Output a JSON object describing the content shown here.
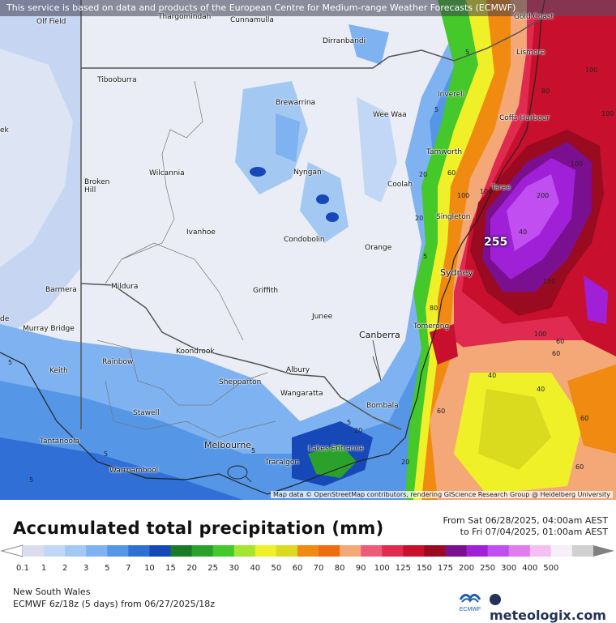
{
  "banner": "This service is based on data and products of the European Centre for Medium-range Weather Forecasts (ECMWF)",
  "credit": "Map data © OpenStreetMap contributors, rendering GIScience Research Group @ Heidelberg University",
  "max_value": "255",
  "cities": [
    {
      "name": "Olf Field",
      "id": "olf-field"
    },
    {
      "name": "Thargomindah",
      "id": "thargomindah"
    },
    {
      "name": "Cunnamulla",
      "id": "cunnamulla"
    },
    {
      "name": "Gold Coast",
      "id": "gold-coast"
    },
    {
      "name": "Dirranbandi",
      "id": "dirranbandi"
    },
    {
      "name": "Lismore",
      "id": "lismore"
    },
    {
      "name": "Tibooburra",
      "id": "tibooburra"
    },
    {
      "name": "Brewarrina",
      "id": "brewarrina"
    },
    {
      "name": "Inverell",
      "id": "inverell"
    },
    {
      "name": "Wee Waa",
      "id": "wee-waa"
    },
    {
      "name": "Coffs Harbour",
      "id": "coffs-harbour"
    },
    {
      "name": "Tamworth",
      "id": "tamworth"
    },
    {
      "name": "Wilcannia",
      "id": "wilcannia"
    },
    {
      "name": "Nyngan",
      "id": "nyngan"
    },
    {
      "name": "Broken Hill",
      "id": "broken-hill"
    },
    {
      "name": "Coolah",
      "id": "coolah"
    },
    {
      "name": "Taree",
      "id": "taree"
    },
    {
      "name": "Singleton",
      "id": "singleton"
    },
    {
      "name": "Ivanhoe",
      "id": "ivanhoe"
    },
    {
      "name": "Condobolin",
      "id": "condobolin"
    },
    {
      "name": "Orange",
      "id": "orange"
    },
    {
      "name": "Sydney",
      "id": "sydney"
    },
    {
      "name": "Barmera",
      "id": "barmera"
    },
    {
      "name": "Mildura",
      "id": "mildura"
    },
    {
      "name": "Griffith",
      "id": "griffith"
    },
    {
      "name": "Junee",
      "id": "junee"
    },
    {
      "name": "Murray Bridge",
      "id": "murray-bridge"
    },
    {
      "name": "Canberra",
      "id": "canberra"
    },
    {
      "name": "Tomerong",
      "id": "tomerong"
    },
    {
      "name": "Koondrook",
      "id": "koondrook"
    },
    {
      "name": "Keith",
      "id": "keith"
    },
    {
      "name": "Rainbow",
      "id": "rainbow"
    },
    {
      "name": "Albury",
      "id": "albury"
    },
    {
      "name": "Shepparton",
      "id": "shepparton"
    },
    {
      "name": "Wangaratta",
      "id": "wangaratta"
    },
    {
      "name": "Bombala",
      "id": "bombala"
    },
    {
      "name": "Stawell",
      "id": "stawell"
    },
    {
      "name": "Tantanoola",
      "id": "tantanoola"
    },
    {
      "name": "Melbourne",
      "id": "melbourne"
    },
    {
      "name": "Lakes Entrance",
      "id": "lakes-entrance"
    },
    {
      "name": "Warrnambool",
      "id": "warrnambool"
    },
    {
      "name": "Traralgon",
      "id": "traralgon"
    },
    {
      "name": "ek",
      "id": "ek"
    },
    {
      "name": "de",
      "id": "de"
    }
  ],
  "isolines": [
    "100",
    "80",
    "100",
    "100",
    "100",
    "200",
    "150",
    "100",
    "100",
    "60",
    "60",
    "40",
    "40",
    "60",
    "60",
    "80",
    "20",
    "20",
    "5",
    "5",
    "5",
    "5",
    "5",
    "5",
    "20",
    "40",
    "60",
    "60",
    "20",
    "5",
    "5"
  ],
  "legend": {
    "title": "Accumulated total precipitation (mm)",
    "from_line": "From Sat 06/28/2025, 04:00am AEST",
    "to_line": "to Fri 07/04/2025, 01:00am AEST",
    "levels": [
      "0.1",
      "1",
      "2",
      "3",
      "5",
      "7",
      "10",
      "15",
      "20",
      "25",
      "30",
      "40",
      "50",
      "60",
      "70",
      "80",
      "90",
      "100",
      "125",
      "150",
      "175",
      "200",
      "250",
      "300",
      "400",
      "500"
    ],
    "colors": [
      "#dcdcf0",
      "#c2d7f5",
      "#a3c8f2",
      "#7fb2f0",
      "#5596e6",
      "#2f6fd6",
      "#1648b8",
      "#1a7a2a",
      "#2aa12a",
      "#44c82a",
      "#a4e62e",
      "#f0f028",
      "#dada1e",
      "#f08a10",
      "#f06c0e",
      "#f4a878",
      "#f05a7a",
      "#e02a50",
      "#c8102e",
      "#9a0a20",
      "#7a1090",
      "#a020d8",
      "#c04ef0",
      "#e07cf0",
      "#f4c0f4",
      "#f8f0f8",
      "#d0d0d0"
    ],
    "region": "New South Wales",
    "model": "ECMWF 6z/18z (5 days) from 06/27/2025/18z",
    "brand": "meteologix.com",
    "ecmwf_logo_text": "ECMWF"
  }
}
